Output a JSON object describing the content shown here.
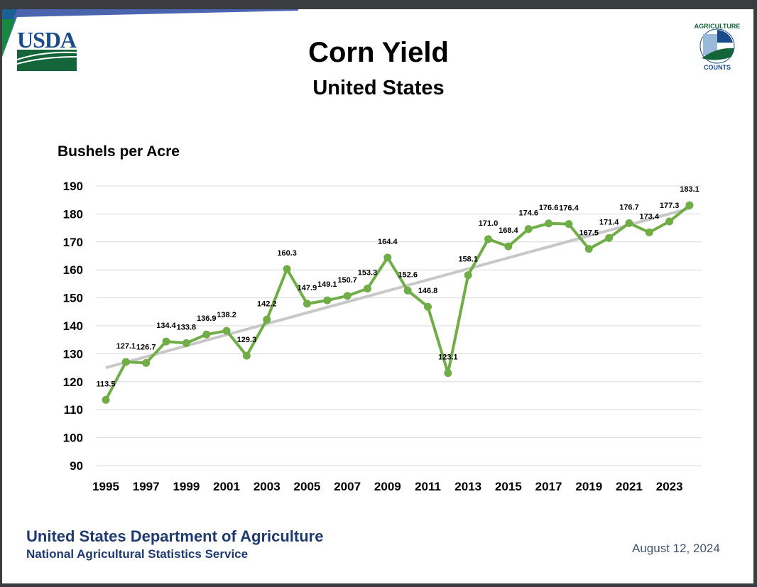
{
  "header": {
    "logo_left": "USDA",
    "logo_right": "AGRICULTURE COUNTS"
  },
  "footer": {
    "org": "United States Department of Agriculture",
    "service": "National Agricultural Statistics Service",
    "date": "August 12, 2024"
  },
  "colors": {
    "series": "#70ad47",
    "trend": "#c8c8c8",
    "grid": "#d9d9d9",
    "footer_text": "#1f3a6e"
  },
  "chart_data": {
    "type": "line",
    "title": "Corn Yield",
    "subtitle": "United States",
    "ylabel": "Bushels per Acre",
    "xlabel": "",
    "ylim": [
      90,
      190
    ],
    "yticks": [
      90,
      100,
      110,
      120,
      130,
      140,
      150,
      160,
      170,
      180,
      190
    ],
    "xticks": [
      1995,
      1997,
      1999,
      2001,
      2003,
      2005,
      2007,
      2009,
      2011,
      2013,
      2015,
      2017,
      2019,
      2021,
      2023
    ],
    "grid": "horizontal",
    "x": [
      1995,
      1996,
      1997,
      1998,
      1999,
      2000,
      2001,
      2002,
      2003,
      2004,
      2005,
      2006,
      2007,
      2008,
      2009,
      2010,
      2011,
      2012,
      2013,
      2014,
      2015,
      2016,
      2017,
      2018,
      2019,
      2020,
      2021,
      2022,
      2023,
      2024
    ],
    "values": [
      113.5,
      127.1,
      126.7,
      134.4,
      133.8,
      136.9,
      138.2,
      129.3,
      142.2,
      160.3,
      147.9,
      149.1,
      150.7,
      153.3,
      164.4,
      152.6,
      146.8,
      123.1,
      158.1,
      171.0,
      168.4,
      174.6,
      176.6,
      176.4,
      167.5,
      171.4,
      176.7,
      173.4,
      177.3,
      183.1
    ],
    "trendline": {
      "type": "linear",
      "start": [
        1995,
        125
      ],
      "end": [
        2024,
        182
      ]
    }
  }
}
